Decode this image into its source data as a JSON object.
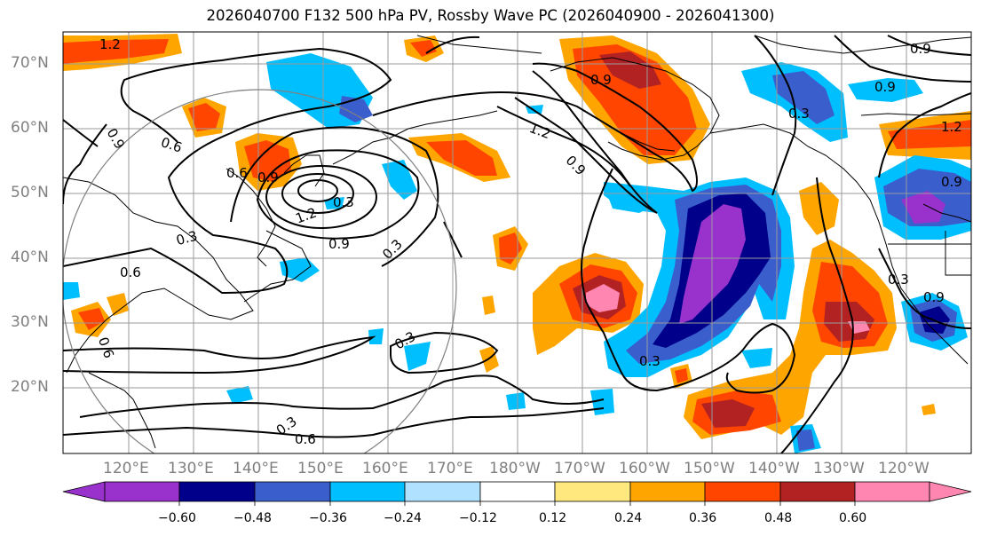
{
  "title": "2026040700 F132 500 hPa PV, Rossby Wave PC (2026040900 - 2026041300)",
  "latitudes": [
    "70°N",
    "60°N",
    "50°N",
    "40°N",
    "30°N",
    "20°N"
  ],
  "longitudes": [
    "120°E",
    "130°E",
    "140°E",
    "150°E",
    "160°E",
    "170°E",
    "180°W",
    "170°W",
    "160°W",
    "150°W",
    "140°W",
    "130°W",
    "120°W"
  ],
  "colorbar": {
    "ticks": [
      "−0.60",
      "−0.48",
      "−0.36",
      "−0.24",
      "−0.12",
      "0.12",
      "0.24",
      "0.36",
      "0.48",
      "0.60"
    ],
    "colors": [
      "#9932cc",
      "#00008b",
      "#3a5fcd",
      "#00bfff",
      "#b0e2ff",
      "#ffffff",
      "#ffe97f",
      "#ffa500",
      "#ff4500",
      "#b22222",
      "#ff86b0"
    ]
  },
  "contour_labels": [
    "1.2",
    "0.9",
    "0.6",
    "0.3",
    "0.9",
    "1.2",
    "0.9",
    "0.3",
    "0.6",
    "0.6",
    "0.3",
    "1.2",
    "0.9",
    "0.9",
    "0.9",
    "0.9",
    "0.3",
    "0.6",
    "0.3",
    "0.6",
    "0.3",
    "0.3",
    "0.3",
    "0.9",
    "1.2",
    "0.9"
  ]
}
